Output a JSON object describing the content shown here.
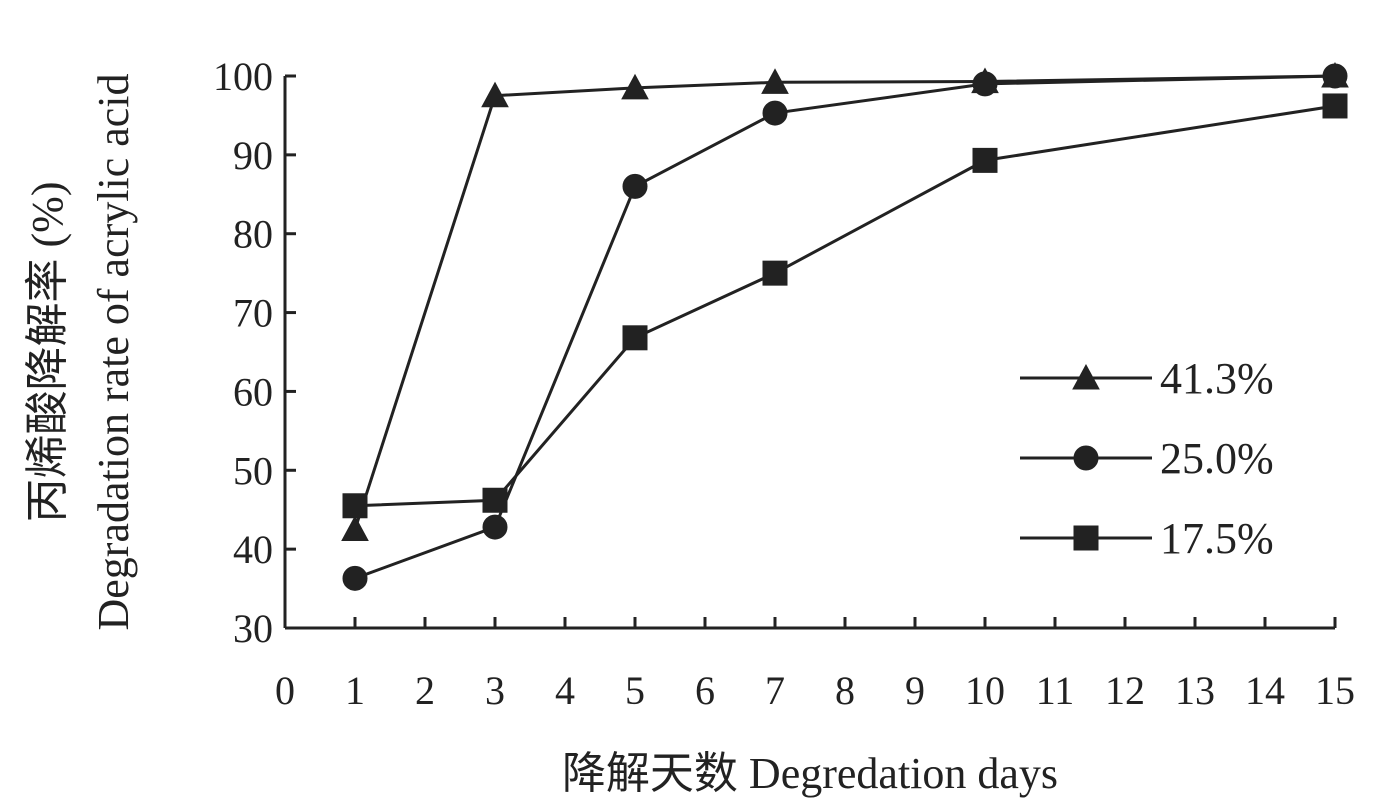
{
  "chart_data": {
    "type": "line",
    "xlabel": "降解天数 Degredation days",
    "ylabel_cn": "丙烯酸降解率 (%)",
    "ylabel_en": "Degradation rate of acrylic acid",
    "xlim": [
      0,
      15
    ],
    "ylim": [
      30,
      100
    ],
    "x_ticks": [
      "0",
      "1",
      "2",
      "3",
      "4",
      "5",
      "6",
      "7",
      "8",
      "9",
      "10",
      "11",
      "12",
      "13",
      "14",
      "15"
    ],
    "y_ticks": [
      "30",
      "40",
      "50",
      "60",
      "70",
      "80",
      "90",
      "100"
    ],
    "grid": false,
    "legend_position": "right",
    "series": [
      {
        "name": "41.3%",
        "marker": "triangle",
        "x": [
          1,
          3,
          5,
          7,
          10,
          15
        ],
        "y": [
          42.5,
          97.5,
          98.5,
          99.2,
          99.3,
          100
        ]
      },
      {
        "name": "25.0%",
        "marker": "circle",
        "x": [
          1,
          3,
          5,
          7,
          10,
          15
        ],
        "y": [
          36.3,
          42.8,
          86,
          95.3,
          99,
          100
        ]
      },
      {
        "name": "17.5%",
        "marker": "square",
        "x": [
          1,
          3,
          5,
          7,
          10,
          15
        ],
        "y": [
          45.5,
          46.2,
          66.8,
          75,
          89.3,
          96.2
        ]
      }
    ]
  }
}
